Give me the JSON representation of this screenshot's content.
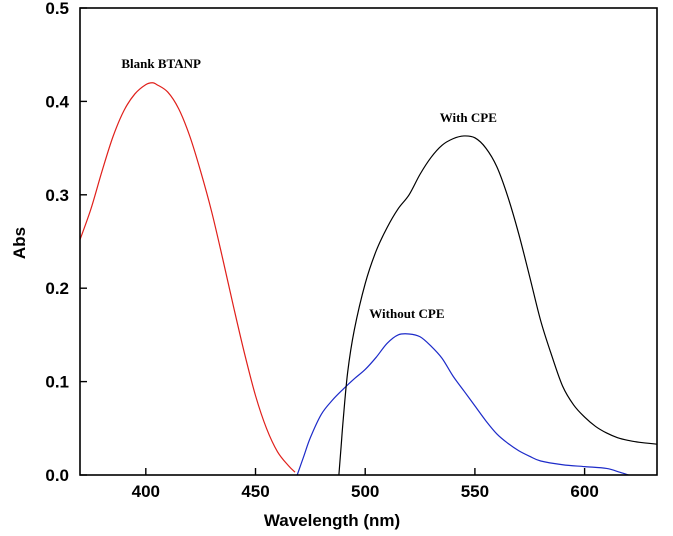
{
  "chart_data": {
    "type": "line",
    "title": "",
    "xlabel": "Wavelength (nm)",
    "ylabel": "Abs",
    "xlim": [
      370,
      633
    ],
    "ylim": [
      0.0,
      0.5
    ],
    "grid": false,
    "x_ticks": [
      400,
      450,
      500,
      550,
      600
    ],
    "x_tick_labels": [
      "400",
      "450",
      "500",
      "550",
      "600"
    ],
    "y_ticks": [
      0.0,
      0.1,
      0.2,
      0.3,
      0.4,
      0.5
    ],
    "y_tick_labels": [
      "0.0",
      "0.1",
      "0.2",
      "0.3",
      "0.4",
      "0.5"
    ],
    "series": [
      {
        "name": "Blank BTANP",
        "color": "#e0201b",
        "label_anchor": [
          407,
          0.436
        ],
        "points": [
          [
            370,
            0.252
          ],
          [
            375,
            0.285
          ],
          [
            380,
            0.325
          ],
          [
            385,
            0.362
          ],
          [
            390,
            0.39
          ],
          [
            395,
            0.408
          ],
          [
            400,
            0.418
          ],
          [
            403,
            0.42
          ],
          [
            405,
            0.418
          ],
          [
            410,
            0.41
          ],
          [
            415,
            0.392
          ],
          [
            420,
            0.363
          ],
          [
            425,
            0.325
          ],
          [
            430,
            0.282
          ],
          [
            435,
            0.232
          ],
          [
            440,
            0.18
          ],
          [
            445,
            0.13
          ],
          [
            450,
            0.085
          ],
          [
            455,
            0.05
          ],
          [
            460,
            0.025
          ],
          [
            465,
            0.01
          ],
          [
            468,
            0.003
          ]
        ]
      },
      {
        "name": "Without CPE",
        "color": "#1d2bc9",
        "label_anchor": [
          519,
          0.168
        ],
        "points": [
          [
            469,
            0.0
          ],
          [
            472,
            0.02
          ],
          [
            475,
            0.04
          ],
          [
            480,
            0.065
          ],
          [
            485,
            0.08
          ],
          [
            490,
            0.092
          ],
          [
            495,
            0.103
          ],
          [
            500,
            0.113
          ],
          [
            505,
            0.126
          ],
          [
            510,
            0.141
          ],
          [
            515,
            0.15
          ],
          [
            520,
            0.151
          ],
          [
            525,
            0.148
          ],
          [
            530,
            0.138
          ],
          [
            535,
            0.125
          ],
          [
            540,
            0.106
          ],
          [
            545,
            0.09
          ],
          [
            550,
            0.074
          ],
          [
            555,
            0.058
          ],
          [
            560,
            0.044
          ],
          [
            565,
            0.034
          ],
          [
            570,
            0.026
          ],
          [
            575,
            0.02
          ],
          [
            580,
            0.015
          ],
          [
            590,
            0.011
          ],
          [
            600,
            0.009
          ],
          [
            610,
            0.007
          ],
          [
            616,
            0.003
          ],
          [
            620,
            0.0
          ]
        ]
      },
      {
        "name": "With CPE",
        "color": "#000000",
        "label_anchor": [
          547,
          0.378
        ],
        "points": [
          [
            488,
            0.0
          ],
          [
            489,
            0.03
          ],
          [
            490,
            0.06
          ],
          [
            492,
            0.11
          ],
          [
            495,
            0.155
          ],
          [
            500,
            0.205
          ],
          [
            505,
            0.24
          ],
          [
            510,
            0.265
          ],
          [
            515,
            0.285
          ],
          [
            520,
            0.3
          ],
          [
            525,
            0.322
          ],
          [
            530,
            0.34
          ],
          [
            535,
            0.353
          ],
          [
            540,
            0.36
          ],
          [
            545,
            0.363
          ],
          [
            550,
            0.361
          ],
          [
            555,
            0.35
          ],
          [
            560,
            0.33
          ],
          [
            565,
            0.298
          ],
          [
            570,
            0.258
          ],
          [
            575,
            0.212
          ],
          [
            580,
            0.165
          ],
          [
            585,
            0.128
          ],
          [
            590,
            0.095
          ],
          [
            595,
            0.075
          ],
          [
            600,
            0.062
          ],
          [
            605,
            0.052
          ],
          [
            610,
            0.045
          ],
          [
            615,
            0.04
          ],
          [
            620,
            0.037
          ],
          [
            625,
            0.035
          ],
          [
            633,
            0.033
          ]
        ]
      }
    ]
  }
}
